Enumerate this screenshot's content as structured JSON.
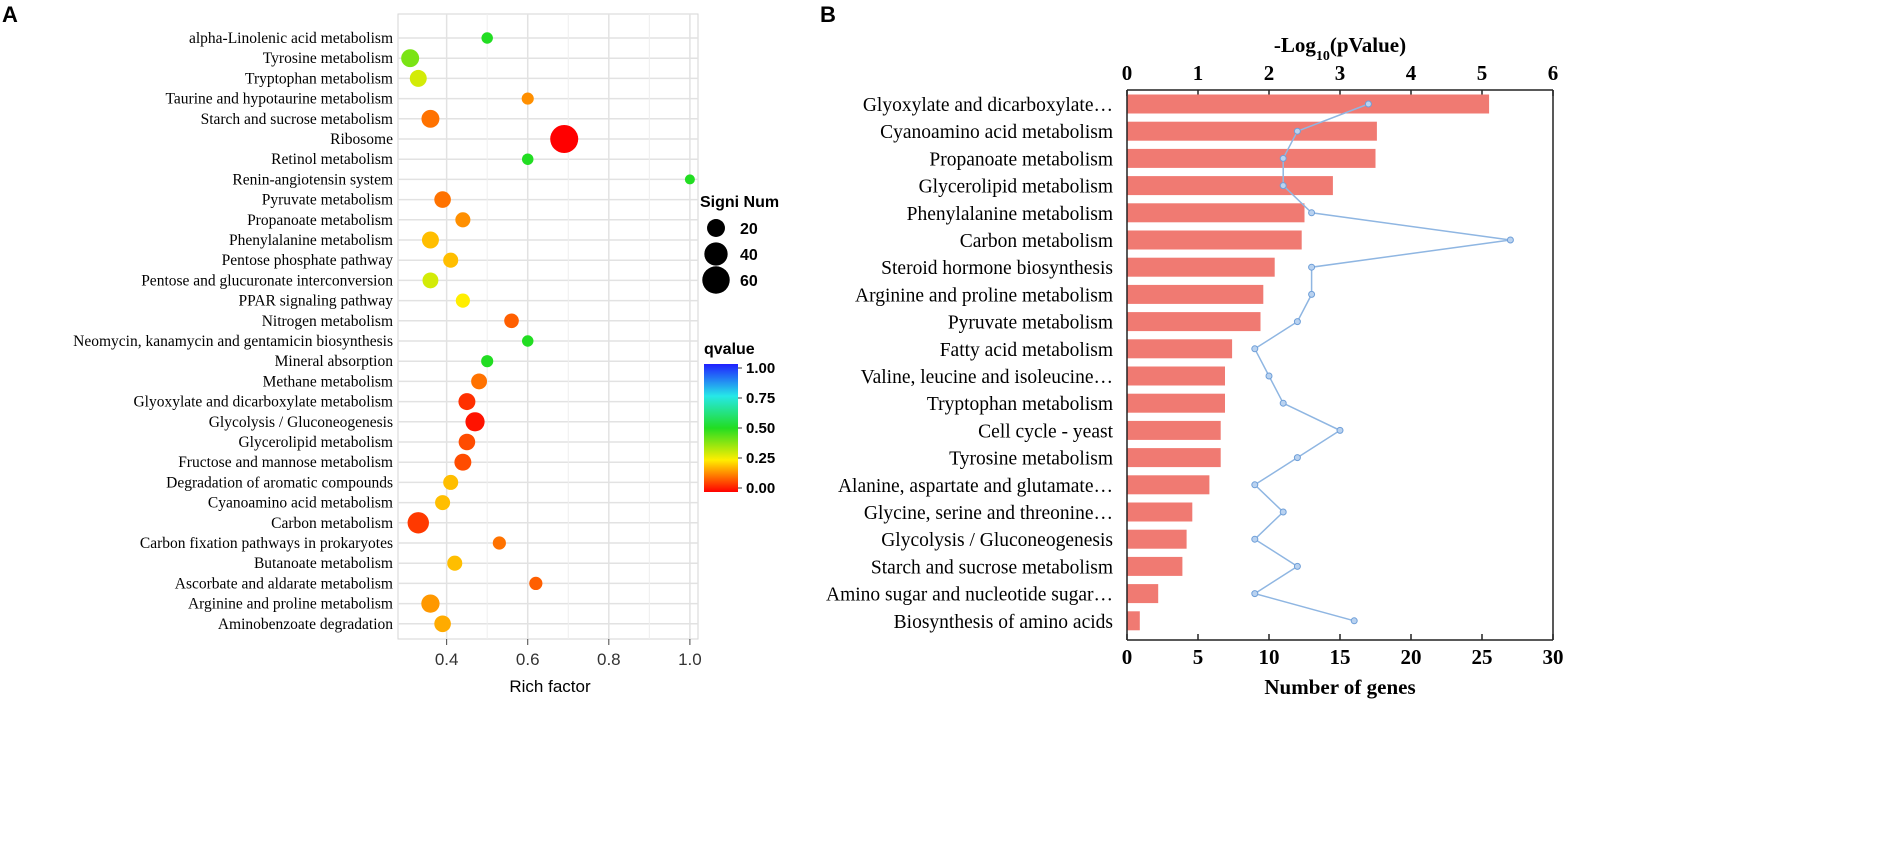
{
  "chart_data": [
    {
      "type": "scatter",
      "panel_label": "A",
      "xlabel": "Rich factor",
      "ylabel": "",
      "xlim": [
        0.28,
        1.02
      ],
      "xticks": [
        0.4,
        0.6,
        0.8,
        1.0
      ],
      "xtick_labels": [
        "0.4",
        "0.6",
        "0.8",
        "1.0"
      ],
      "grid": true,
      "categories": [
        "alpha-Linolenic acid metabolism",
        "Tyrosine metabolism",
        "Tryptophan metabolism",
        "Taurine and hypotaurine metabolism",
        "Starch and sucrose metabolism",
        "Ribosome",
        "Retinol metabolism",
        "Renin-angiotensin system",
        "Pyruvate metabolism",
        "Propanoate metabolism",
        "Phenylalanine metabolism",
        "Pentose phosphate pathway",
        "Pentose and glucuronate interconversion",
        "PPAR signaling pathway",
        "Nitrogen metabolism",
        "Neomycin, kanamycin and gentamicin biosynthesis",
        "Mineral absorption",
        "Methane metabolism",
        "Glyoxylate and dicarboxylate metabolism",
        "Glycolysis / Gluconeogenesis",
        "Glycerolipid metabolism",
        "Fructose and mannose metabolism",
        "Degradation of aromatic compounds",
        "Cyanoamino acid metabolism",
        "Carbon metabolism",
        "Carbon fixation pathways in prokaryotes",
        "Butanoate metabolism",
        "Ascorbate and aldarate metabolism",
        "Arginine and proline metabolism",
        "Aminobenzoate degradation"
      ],
      "x": [
        0.5,
        0.31,
        0.33,
        0.6,
        0.36,
        0.69,
        0.6,
        1.0,
        0.39,
        0.44,
        0.36,
        0.41,
        0.36,
        0.44,
        0.56,
        0.6,
        0.5,
        0.48,
        0.45,
        0.47,
        0.45,
        0.44,
        0.41,
        0.39,
        0.33,
        0.53,
        0.42,
        0.62,
        0.36,
        0.39
      ],
      "signi_num": [
        5,
        20,
        17,
        6,
        20,
        63,
        5,
        3,
        16,
        12,
        17,
        12,
        14,
        10,
        11,
        5,
        6,
        14,
        17,
        24,
        16,
        17,
        12,
        12,
        32,
        8,
        12,
        8,
        21,
        16
      ],
      "qvalue": [
        0.5,
        0.4,
        0.3,
        0.15,
        0.12,
        0.0,
        0.5,
        0.5,
        0.12,
        0.15,
        0.2,
        0.2,
        0.3,
        0.25,
        0.1,
        0.5,
        0.5,
        0.12,
        0.05,
        0.02,
        0.08,
        0.08,
        0.2,
        0.2,
        0.06,
        0.12,
        0.2,
        0.1,
        0.16,
        0.18
      ],
      "size_legend": {
        "title": "Signi Num",
        "values": [
          20,
          40,
          60
        ],
        "labels": [
          "20",
          "40",
          "60"
        ]
      },
      "color_legend": {
        "title": "qvalue",
        "tick_labels": [
          "1.00",
          "0.75",
          "0.50",
          "0.25",
          "0.00"
        ],
        "colors": [
          "#2020ff",
          "#26e8e8",
          "#22dd22",
          "#ffee00",
          "#ff0000"
        ]
      }
    },
    {
      "type": "bar",
      "panel_label": "B",
      "orientation": "horizontal",
      "xlabel": "Number of genes",
      "top_axis_label": "-Log",
      "top_axis_label_sub": "10",
      "top_axis_label_tail": "(pValue)",
      "xlim": [
        0,
        30
      ],
      "xticks": [
        0,
        5,
        10,
        15,
        20,
        25,
        30
      ],
      "xtick_labels": [
        "0",
        "5",
        "10",
        "15",
        "20",
        "25",
        "30"
      ],
      "top_xlim": [
        0,
        6
      ],
      "top_xticks": [
        0,
        1,
        2,
        3,
        4,
        5,
        6
      ],
      "top_xtick_labels": [
        "0",
        "1",
        "2",
        "3",
        "4",
        "5",
        "6"
      ],
      "bar_color": "#f07a72",
      "line_color": "#8fb6e2",
      "categories": [
        "Glyoxylate and dicarboxylate…",
        "Cyanoamino acid metabolism",
        "Propanoate metabolism",
        "Glycerolipid metabolism",
        "Phenylalanine metabolism",
        "Carbon metabolism",
        "Steroid hormone biosynthesis",
        "Arginine and proline metabolism",
        "Pyruvate metabolism",
        "Fatty acid metabolism",
        "Valine, leucine and isoleucine…",
        "Tryptophan metabolism",
        "Cell cycle - yeast",
        "Tyrosine metabolism",
        "Alanine, aspartate and glutamate…",
        "Glycine, serine and threonine…",
        "Glycolysis / Gluconeogenesis",
        "Starch and sucrose metabolism",
        "Amino sugar and nucleotide sugar…",
        "Biosynthesis of amino acids"
      ],
      "series": [
        {
          "name": "Number of genes",
          "values": [
            25.5,
            17.6,
            17.5,
            14.5,
            12.5,
            12.3,
            10.4,
            9.6,
            9.4,
            7.4,
            6.9,
            6.9,
            6.6,
            6.6,
            5.8,
            4.6,
            4.2,
            3.9,
            2.2,
            0.9
          ]
        },
        {
          "name": "-Log10(pValue)",
          "values": [
            3.4,
            2.4,
            2.2,
            2.2,
            2.6,
            5.4,
            2.6,
            2.6,
            2.4,
            1.8,
            2.0,
            2.2,
            3.0,
            2.4,
            1.8,
            2.2,
            1.8,
            2.4,
            1.8,
            3.2
          ]
        }
      ]
    }
  ]
}
